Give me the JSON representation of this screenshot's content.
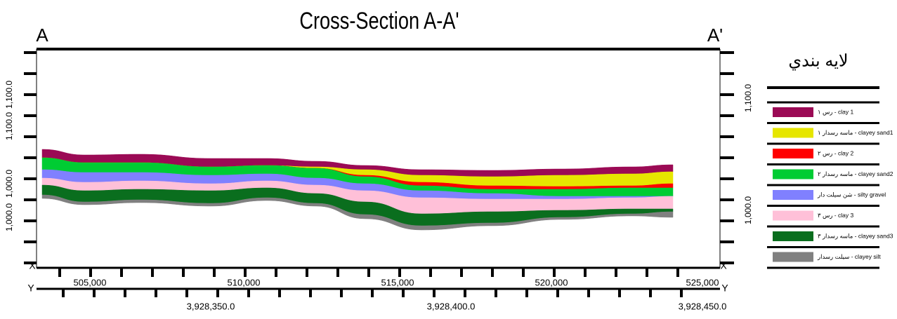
{
  "title": "Cross-Section A-A'",
  "section_labels": {
    "start": "A",
    "end": "A'"
  },
  "axis_labels": {
    "x": "X",
    "y": "Y"
  },
  "left_elevation_labels": [
    "1,100.0",
    "1,100.0",
    "1,000.0",
    "1,000.0"
  ],
  "right_elevation_labels": [
    "1,100.0",
    "1,000.0"
  ],
  "x_labels": [
    "505,000",
    "510,000",
    "515,000",
    "520,000",
    "525,000"
  ],
  "y_labels": [
    "3,928,350.0",
    "3,928,400.0",
    "3,928,450.0"
  ],
  "legend": {
    "title": "لایه بندي",
    "items": [
      {
        "label": "رس ۱ - clay 1",
        "color": "#9b0a55"
      },
      {
        "label": "ماسه رسدار ۱ - clayey sand1",
        "color": "#e6e600"
      },
      {
        "label": "رس ۲ - clay 2",
        "color": "#ff0000"
      },
      {
        "label": "ماسه رسدار ۲ - clayey sand2",
        "color": "#00cc33"
      },
      {
        "label": "شن سیلت دار - silty gravel",
        "color": "#8080ff"
      },
      {
        "label": "رس ۳ - clay 3",
        "color": "#ffc0d8"
      },
      {
        "label": "ماسه رسدار ۳ - clayey sand3",
        "color": "#0a6e1e"
      },
      {
        "label": "سیلت رسدار - clayey silt",
        "color": "#808080"
      }
    ]
  }
}
